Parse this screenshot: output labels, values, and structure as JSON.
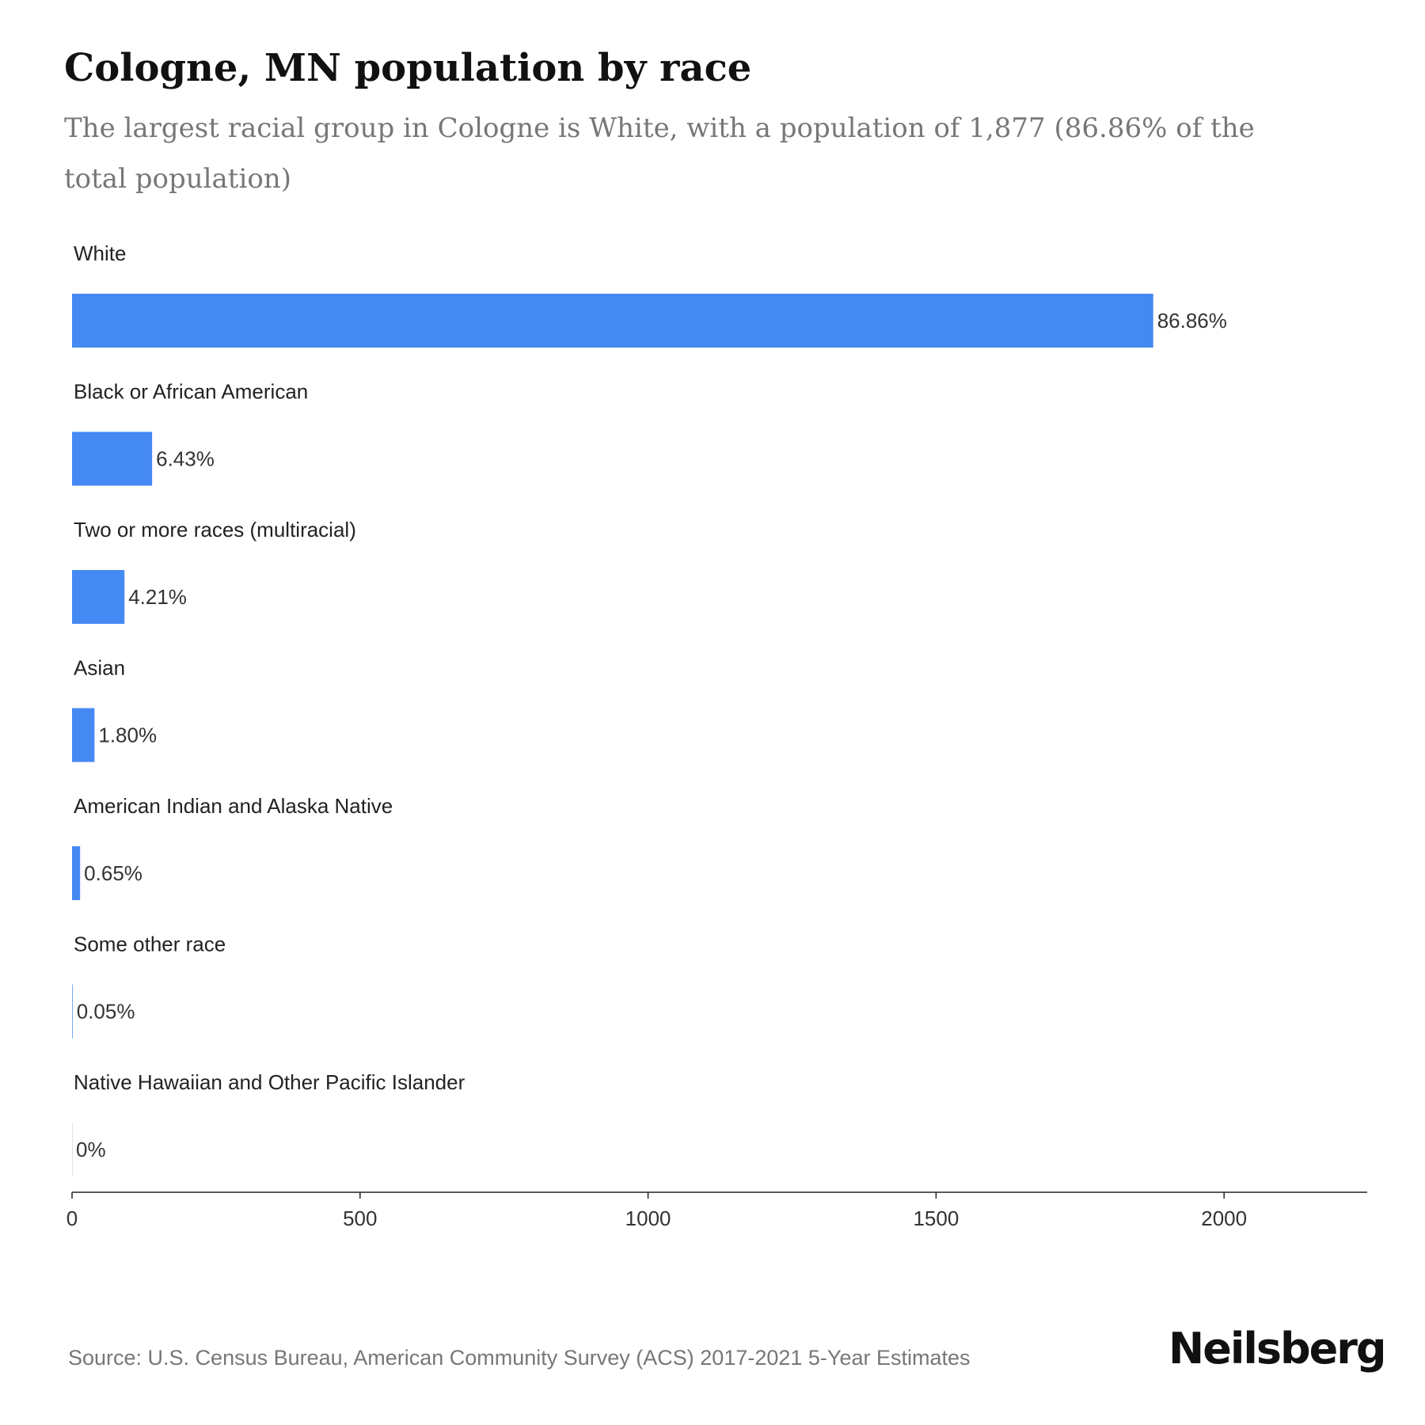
{
  "header": {
    "title": "Cologne, MN population by race",
    "subtitle": "The largest racial group in Cologne is White, with a population of 1,877 (86.86% of the total population)"
  },
  "chart_data": {
    "type": "bar",
    "orientation": "horizontal",
    "categories": [
      "White",
      "Black or African American",
      "Two or more races (multiracial)",
      "Asian",
      "American Indian and Alaska Native",
      "Some other race",
      "Native Hawaiian and Other Pacific Islander"
    ],
    "values": [
      1877,
      139,
      91,
      39,
      14,
      1,
      0
    ],
    "data_labels": [
      "86.86%",
      "6.43%",
      "4.21%",
      "1.80%",
      "0.65%",
      "0.05%",
      "0%"
    ],
    "x_ticks": [
      "0",
      "500",
      "1000",
      "1500",
      "2000"
    ],
    "xlim": [
      0,
      2250
    ],
    "grid": false,
    "bar_color": "#4589f3"
  },
  "footer": {
    "source": "Source: U.S. Census Bureau, American Community Survey (ACS) 2017-2021 5-Year Estimates",
    "brand": "Neilsberg"
  }
}
